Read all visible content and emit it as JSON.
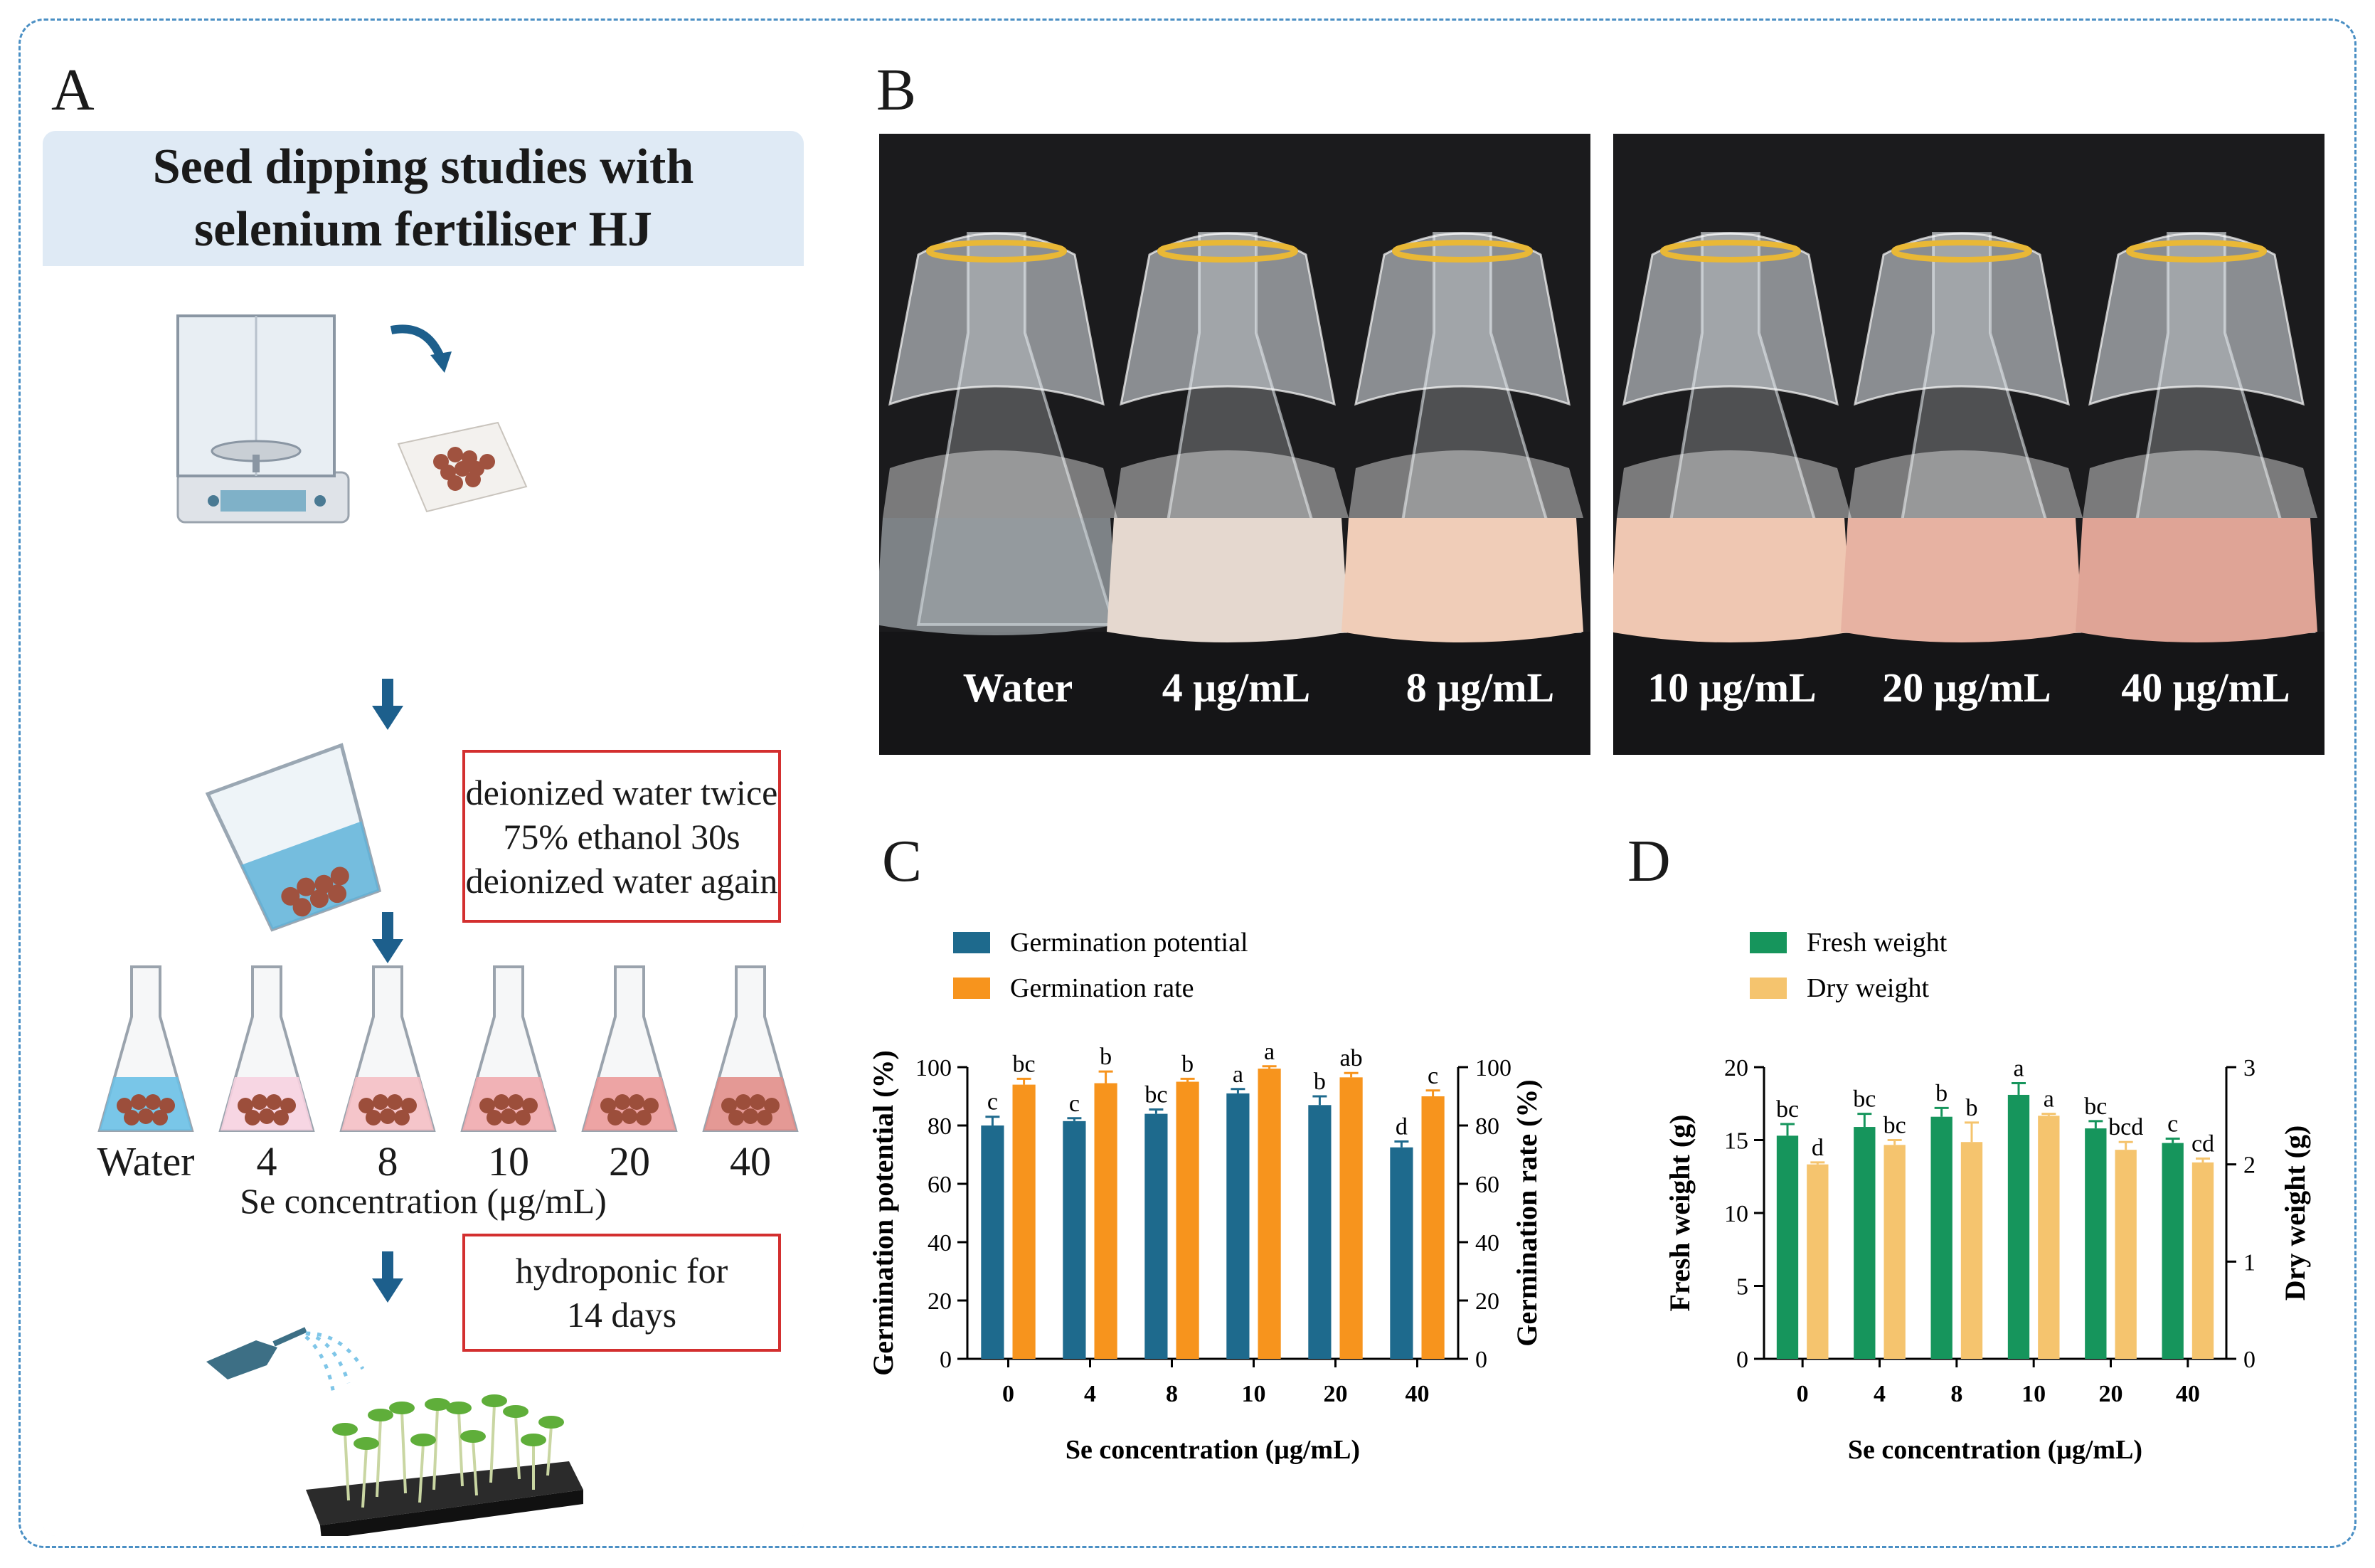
{
  "panels": {
    "a": "A",
    "b": "B",
    "c": "C",
    "d": "D"
  },
  "panel_a": {
    "title_line1": "Seed dipping studies with",
    "title_line2": "selenium fertiliser HJ",
    "wash_step": [
      "deionized water twice",
      "75% ethanol 30s",
      "deionized water again"
    ],
    "flask_labels": [
      "Water",
      "4",
      "8",
      "10",
      "20",
      "40"
    ],
    "axis_label": "Se concentration (μg/mL)",
    "hydro_step": [
      "hydroponic for",
      "14 days"
    ],
    "colors": {
      "arrow": "#1d5f8c",
      "box_border": "#d32f2f",
      "header": "#dfeaf5"
    }
  },
  "panel_b": {
    "photo_left_labels": [
      "Water",
      "4 μg/mL",
      "8 μg/mL"
    ],
    "photo_right_labels": [
      "10 μg/mL",
      "20 μg/mL",
      "40 μg/mL"
    ]
  },
  "chart_data": [
    {
      "id": "C",
      "type": "bar",
      "categories": [
        "0",
        "4",
        "8",
        "10",
        "20",
        "40"
      ],
      "xlabel": "Se concentration (μg/mL)",
      "ylabel_left": "Germination potential (%)",
      "ylabel_right": "Germination rate (%)",
      "ylim_left": [
        0,
        100
      ],
      "ylim_right": [
        0,
        100
      ],
      "yticks_left": [
        "0",
        "20",
        "40",
        "60",
        "80",
        "100"
      ],
      "yticks_right": [
        "0",
        "20",
        "40",
        "60",
        "80",
        "100"
      ],
      "legend_placement": "top-left",
      "series": [
        {
          "name": "Germination potential",
          "axis": "left",
          "color": "#1e6a8d",
          "values": [
            80,
            81.5,
            84,
            91,
            87,
            72.5
          ],
          "errors": [
            3,
            1,
            1.5,
            1.5,
            3,
            2
          ],
          "letters": [
            "c",
            "c",
            "bc",
            "a",
            "b",
            "d"
          ]
        },
        {
          "name": "Germination rate",
          "axis": "right",
          "color": "#f7941d",
          "values": [
            94,
            94.5,
            95,
            99.5,
            96.5,
            90
          ],
          "errors": [
            2,
            4,
            1,
            0.8,
            1.5,
            2
          ],
          "letters": [
            "bc",
            "b",
            "b",
            "a",
            "ab",
            "c"
          ]
        }
      ]
    },
    {
      "id": "D",
      "type": "bar",
      "categories": [
        "0",
        "4",
        "8",
        "10",
        "20",
        "40"
      ],
      "xlabel": "Se concentration (μg/mL)",
      "ylabel_left": "Fresh weight (g)",
      "ylabel_right": "Dry weight (g)",
      "ylim_left": [
        0,
        20
      ],
      "ylim_right": [
        0,
        3
      ],
      "yticks_left": [
        "0",
        "5",
        "10",
        "15",
        "20"
      ],
      "yticks_right": [
        "0",
        "1",
        "2",
        "3"
      ],
      "legend_placement": "top-left",
      "series": [
        {
          "name": "Fresh weight",
          "axis": "left",
          "color": "#16955c",
          "values": [
            15.3,
            15.9,
            16.6,
            18.1,
            15.8,
            14.8
          ],
          "errors": [
            0.8,
            0.9,
            0.6,
            0.8,
            0.5,
            0.3
          ],
          "letters": [
            "bc",
            "bc",
            "b",
            "a",
            "bc",
            "c"
          ]
        },
        {
          "name": "Dry weight",
          "axis": "right",
          "color": "#f5c46e",
          "values": [
            2.0,
            2.2,
            2.23,
            2.5,
            2.15,
            2.02
          ],
          "errors": [
            0.02,
            0.05,
            0.2,
            0.02,
            0.08,
            0.04
          ],
          "letters": [
            "d",
            "bc",
            "b",
            "a",
            "bcd",
            "cd"
          ]
        }
      ]
    }
  ]
}
